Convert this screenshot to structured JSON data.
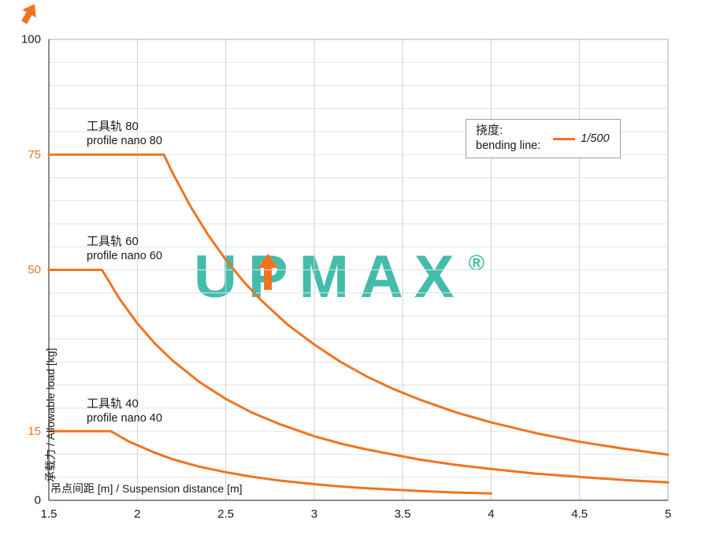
{
  "colors": {
    "accent_orange": "#ef7420",
    "watermark_teal": "#3bb9a7",
    "grid_light": "#e0e3e6",
    "grid_major": "#cdd2d6",
    "border": "#aab0b5",
    "axis": "#62686d",
    "text": "#1a1a1a"
  },
  "watermark": {
    "text": "UPMAX",
    "registered": "®"
  },
  "chart_data": {
    "type": "line",
    "title": "",
    "xlabel": "吊点间距 [m] / Suspension distance [m]",
    "ylabel": "承载力 / Allowable load [kg]",
    "xlim": [
      1.5,
      5
    ],
    "ylim": [
      0,
      100
    ],
    "grid": {
      "h_step": 5,
      "v_step": 0.5
    },
    "legend_position": "top-right",
    "legend": {
      "zh": "挠度:",
      "en": "bending line:",
      "entry": "1/500"
    },
    "x_ticks": [
      {
        "v": 1.5,
        "label": "1.5"
      },
      {
        "v": 2,
        "label": "2"
      },
      {
        "v": 2.5,
        "label": "2.5"
      },
      {
        "v": 3,
        "label": "3"
      },
      {
        "v": 3.5,
        "label": "3.5"
      },
      {
        "v": 4,
        "label": "4"
      },
      {
        "v": 4.5,
        "label": "4.5"
      },
      {
        "v": 5,
        "label": "5"
      }
    ],
    "y_ticks": [
      {
        "v": 0,
        "label": "0",
        "color": "#1a1a1a"
      },
      {
        "v": 15,
        "label": "15",
        "color": "#ef7420"
      },
      {
        "v": 50,
        "label": "50",
        "color": "#ef7420"
      },
      {
        "v": 75,
        "label": "75",
        "color": "#ef7420"
      },
      {
        "v": 100,
        "label": "100",
        "color": "#1a1a1a"
      }
    ],
    "series": [
      {
        "name": "profile nano 80",
        "label_zh": "工具轨 80",
        "label_en": "profile nano 80",
        "max_load_kg": 75,
        "color": "#ef7420",
        "points": [
          [
            1.5,
            75
          ],
          [
            2.15,
            75
          ],
          [
            2.2,
            71
          ],
          [
            2.3,
            63.8
          ],
          [
            2.4,
            57.6
          ],
          [
            2.5,
            52.2
          ],
          [
            2.6,
            47.5
          ],
          [
            2.7,
            43.4
          ],
          [
            2.85,
            38.1
          ],
          [
            3.0,
            33.8
          ],
          [
            3.15,
            30.0
          ],
          [
            3.3,
            26.8
          ],
          [
            3.45,
            24.1
          ],
          [
            3.6,
            21.8
          ],
          [
            3.8,
            19.1
          ],
          [
            4.0,
            16.9
          ],
          [
            4.25,
            14.6
          ],
          [
            4.5,
            12.7
          ],
          [
            4.75,
            11.2
          ],
          [
            5.0,
            9.9
          ]
        ]
      },
      {
        "name": "profile nano 60",
        "label_zh": "工具轨 60",
        "label_en": "profile nano 60",
        "max_load_kg": 50,
        "color": "#ef7420",
        "points": [
          [
            1.5,
            50
          ],
          [
            1.8,
            50
          ],
          [
            1.9,
            43.7
          ],
          [
            2.0,
            38.4
          ],
          [
            2.1,
            34.0
          ],
          [
            2.2,
            30.3
          ],
          [
            2.35,
            25.7
          ],
          [
            2.5,
            22.0
          ],
          [
            2.65,
            19.0
          ],
          [
            2.8,
            16.6
          ],
          [
            3.0,
            13.9
          ],
          [
            3.15,
            12.3
          ],
          [
            3.3,
            11.0
          ],
          [
            3.6,
            8.8
          ],
          [
            3.8,
            7.7
          ],
          [
            4.0,
            6.8
          ],
          [
            4.25,
            5.8
          ],
          [
            4.5,
            5.1
          ],
          [
            4.75,
            4.4
          ],
          [
            5.0,
            3.9
          ]
        ]
      },
      {
        "name": "profile nano 40",
        "label_zh": "工具轨 40",
        "label_en": "profile nano 40",
        "max_load_kg": 15,
        "color": "#ef7420",
        "points": [
          [
            1.5,
            15
          ],
          [
            1.85,
            15
          ],
          [
            1.95,
            12.8
          ],
          [
            2.1,
            10.3
          ],
          [
            2.2,
            8.9
          ],
          [
            2.35,
            7.3
          ],
          [
            2.5,
            6.1
          ],
          [
            2.65,
            5.1
          ],
          [
            2.8,
            4.3
          ],
          [
            3.0,
            3.5
          ],
          [
            3.15,
            3.0
          ],
          [
            3.3,
            2.6
          ],
          [
            3.45,
            2.3
          ],
          [
            3.6,
            2.0
          ],
          [
            3.8,
            1.7
          ],
          [
            4.0,
            1.5
          ]
        ]
      }
    ]
  }
}
